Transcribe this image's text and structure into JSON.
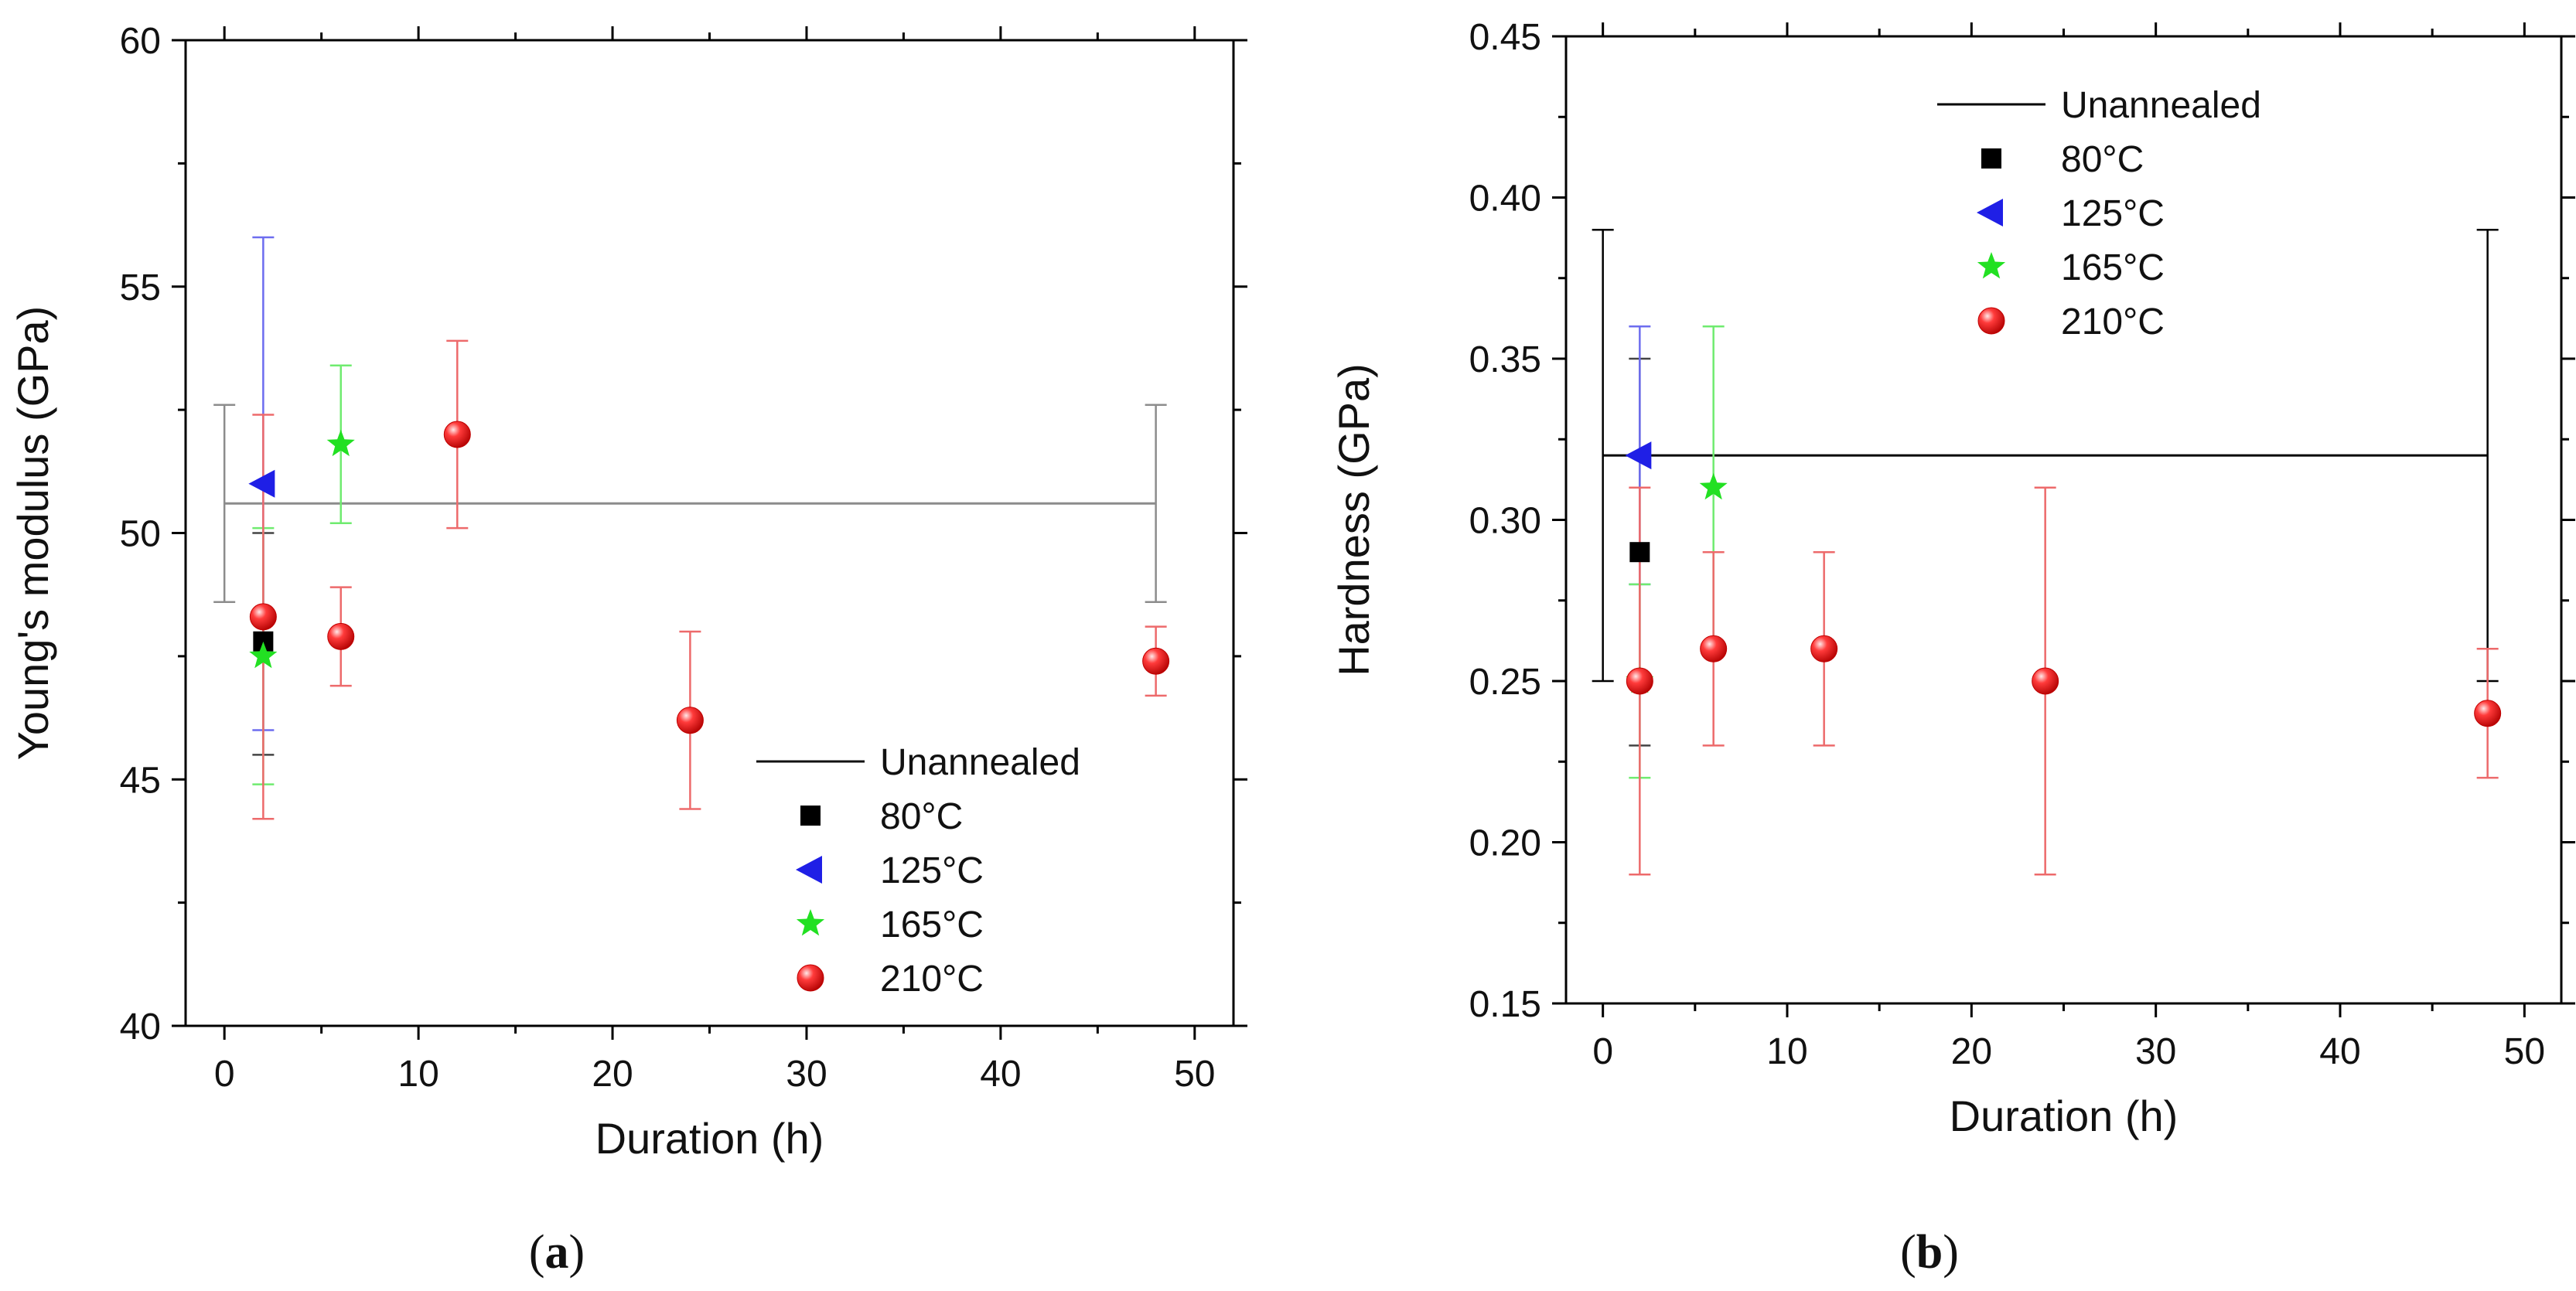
{
  "chart_data": [
    {
      "type": "scatter",
      "panel_label": "a",
      "xlabel": "Duration (h)",
      "ylabel": "Young's modulus (GPa)",
      "xlim": [
        -2,
        52
      ],
      "ylim": [
        40,
        60
      ],
      "xticks": [
        0,
        10,
        20,
        30,
        40,
        50
      ],
      "yticks": [
        40,
        45,
        50,
        55,
        60
      ],
      "legend_position": "bottom-right",
      "reference": {
        "name": "Unannealed",
        "value": 50.6,
        "x_start": 0,
        "x_end": 48,
        "err_low": 48.6,
        "err_high": 52.6,
        "color": "#8c8c8c"
      },
      "series": [
        {
          "name": "80°C",
          "marker": "square",
          "color": "#000000",
          "points": [
            {
              "x": 2,
              "y": 47.8,
              "low": 45.5,
              "high": 50.0
            }
          ]
        },
        {
          "name": "125°C",
          "marker": "triangle-left",
          "color": "#1f1fe6",
          "points": [
            {
              "x": 2,
              "y": 51.0,
              "low": 46.0,
              "high": 56.0
            }
          ]
        },
        {
          "name": "165°C",
          "marker": "star",
          "color": "#22e022",
          "points": [
            {
              "x": 2,
              "y": 47.5,
              "low": 44.9,
              "high": 50.1
            },
            {
              "x": 6,
              "y": 51.8,
              "low": 50.2,
              "high": 53.4
            }
          ]
        },
        {
          "name": "210°C",
          "marker": "sphere",
          "color": "#e41a1c",
          "points": [
            {
              "x": 2,
              "y": 48.3,
              "low": 44.2,
              "high": 52.4
            },
            {
              "x": 6,
              "y": 47.9,
              "low": 46.9,
              "high": 48.9
            },
            {
              "x": 12,
              "y": 52.0,
              "low": 50.1,
              "high": 53.9
            },
            {
              "x": 24,
              "y": 46.2,
              "low": 44.4,
              "high": 48.0
            },
            {
              "x": 48,
              "y": 47.4,
              "low": 46.7,
              "high": 48.1
            }
          ]
        }
      ]
    },
    {
      "type": "scatter",
      "panel_label": "b",
      "xlabel": "Duration (h)",
      "ylabel": "Hardness (GPa)",
      "xlim": [
        -2,
        52
      ],
      "ylim": [
        0.15,
        0.45
      ],
      "xticks": [
        0,
        10,
        20,
        30,
        40,
        50
      ],
      "yticks": [
        0.15,
        0.2,
        0.25,
        0.3,
        0.35,
        0.4,
        0.45
      ],
      "ytick_labels": [
        "0.15",
        "0.20",
        "0.25",
        "0.30",
        "0.35",
        "0.40",
        "0.45"
      ],
      "legend_position": "top-center",
      "reference": {
        "name": "Unannealed",
        "value": 0.32,
        "x_start": 0,
        "x_end": 48,
        "err_low": 0.25,
        "err_high": 0.39,
        "color": "#000000"
      },
      "series": [
        {
          "name": "80°C",
          "marker": "square",
          "color": "#000000",
          "points": [
            {
              "x": 2,
              "y": 0.29,
              "low": 0.23,
              "high": 0.35
            }
          ]
        },
        {
          "name": "125°C",
          "marker": "triangle-left",
          "color": "#1f1fe6",
          "points": [
            {
              "x": 2,
              "y": 0.32,
              "low": 0.28,
              "high": 0.36
            }
          ]
        },
        {
          "name": "165°C",
          "marker": "star",
          "color": "#22e022",
          "points": [
            {
              "x": 2,
              "y": 0.25,
              "low": 0.22,
              "high": 0.28
            },
            {
              "x": 6,
              "y": 0.31,
              "low": 0.26,
              "high": 0.36
            }
          ]
        },
        {
          "name": "210°C",
          "marker": "sphere",
          "color": "#e41a1c",
          "points": [
            {
              "x": 2,
              "y": 0.25,
              "low": 0.19,
              "high": 0.31
            },
            {
              "x": 6,
              "y": 0.26,
              "low": 0.23,
              "high": 0.29
            },
            {
              "x": 12,
              "y": 0.26,
              "low": 0.23,
              "high": 0.29
            },
            {
              "x": 24,
              "y": 0.25,
              "low": 0.19,
              "high": 0.31
            },
            {
              "x": 48,
              "y": 0.24,
              "low": 0.22,
              "high": 0.26
            }
          ]
        }
      ]
    }
  ]
}
